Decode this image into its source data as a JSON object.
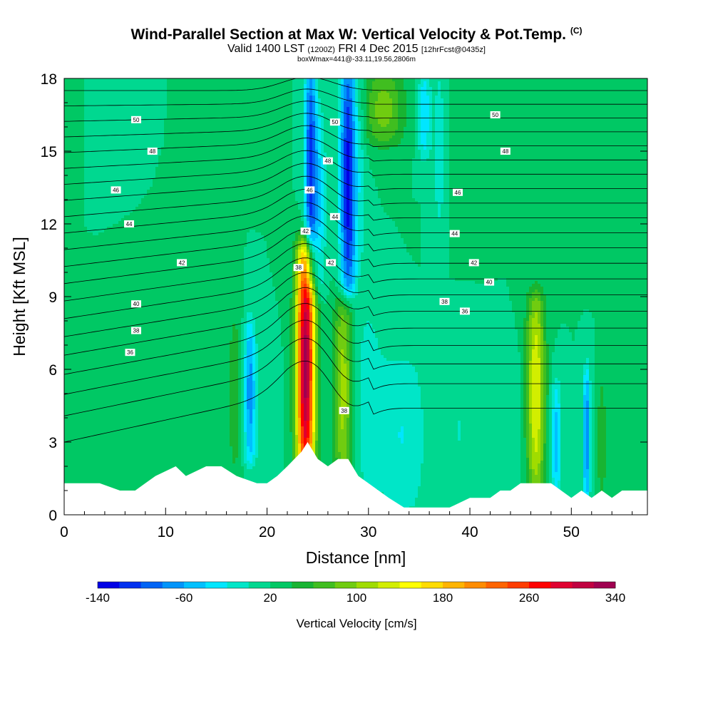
{
  "title": {
    "main": "Wind-Parallel Section at Max W: Vertical Velocity & Pot.Temp.",
    "copyright": "(C)",
    "valid_prefix": "Valid 1400 LST",
    "utc": "(1200Z)",
    "date": "FRI 4 Dec 2015",
    "forecast": "[12hrFcst@0435z]",
    "subtitle": "boxWmax=441@-33.11,19.56,2806m"
  },
  "chart_data": {
    "type": "heatmap",
    "title": "Wind-Parallel Section at Max W: Vertical Velocity & Pot.Temp.",
    "xlabel": "Distance [nm]",
    "ylabel": "Height [Kft MSL]",
    "xlim": [
      0,
      57.5
    ],
    "ylim": [
      0,
      18
    ],
    "x_ticks": [
      "0",
      "10",
      "20",
      "30",
      "40",
      "50"
    ],
    "y_ticks": [
      "0",
      "3",
      "6",
      "9",
      "12",
      "15",
      "18"
    ],
    "colorbar": {
      "label": "Vertical Velocity [cm/s]",
      "tick_labels": [
        "-140",
        "-60",
        "20",
        "100",
        "180",
        "260",
        "340"
      ],
      "min": -140,
      "max": 340,
      "step": 20,
      "colors": [
        "#0000e6",
        "#0030f0",
        "#0064f5",
        "#0094fa",
        "#00c0ff",
        "#00e6ff",
        "#00e6c8",
        "#00d890",
        "#00c864",
        "#18b432",
        "#40be20",
        "#70cc10",
        "#a0dc00",
        "#d2ee00",
        "#ffff00",
        "#ffdc00",
        "#ffb400",
        "#ff8c00",
        "#ff6400",
        "#ff3c00",
        "#ff0000",
        "#e00030",
        "#c00040",
        "#a00050"
      ]
    },
    "background_value": 20,
    "velocity_features": [
      {
        "x": 23.8,
        "ylo": 1.8,
        "yhi": 10.5,
        "w": 0.9,
        "value": 330
      },
      {
        "x": 24.3,
        "ylo": 10.0,
        "yhi": 18.0,
        "w": 0.6,
        "value": -110
      },
      {
        "x": 25.2,
        "ylo": 9.5,
        "yhi": 16.0,
        "w": 0.6,
        "value": -30
      },
      {
        "x": 27.5,
        "ylo": 1.8,
        "yhi": 8.5,
        "w": 0.9,
        "value": 110
      },
      {
        "x": 28.0,
        "ylo": 9.5,
        "yhi": 18.0,
        "w": 0.8,
        "value": -130
      },
      {
        "x": 29.3,
        "ylo": 10.5,
        "yhi": 18.0,
        "w": 0.6,
        "value": 0
      },
      {
        "x": 30.0,
        "ylo": 1.5,
        "yhi": 8.0,
        "w": 1.5,
        "value": -10
      },
      {
        "x": 31.5,
        "ylo": 15.5,
        "yhi": 18.0,
        "w": 2.0,
        "value": 90
      },
      {
        "x": 33.3,
        "ylo": 0.5,
        "yhi": 6.0,
        "w": 2.5,
        "value": -20
      },
      {
        "x": 35.5,
        "ylo": 15.0,
        "yhi": 18.0,
        "w": 0.6,
        "value": -40
      },
      {
        "x": 37.0,
        "ylo": 12.0,
        "yhi": 18.0,
        "w": 0.7,
        "value": -10
      },
      {
        "x": 18.3,
        "ylo": 2.5,
        "yhi": 7.5,
        "w": 0.6,
        "value": -70
      },
      {
        "x": 16.8,
        "ylo": 2.0,
        "yhi": 8.0,
        "w": 0.8,
        "value": 50
      },
      {
        "x": 20.0,
        "ylo": 1.5,
        "yhi": 6.0,
        "w": 1.0,
        "value": 0
      },
      {
        "x": 46.5,
        "ylo": 1.5,
        "yhi": 8.5,
        "w": 0.9,
        "value": 140
      },
      {
        "x": 48.5,
        "ylo": 1.0,
        "yhi": 5.0,
        "w": 0.5,
        "value": -50
      },
      {
        "x": 51.5,
        "ylo": 1.0,
        "yhi": 5.5,
        "w": 0.35,
        "value": -80
      },
      {
        "x": 53.0,
        "ylo": 1.0,
        "yhi": 5.0,
        "w": 0.4,
        "value": 60
      },
      {
        "x": 3.5,
        "ylo": 1.5,
        "yhi": 6.0,
        "w": 2.5,
        "value": 30
      },
      {
        "x": 10.0,
        "ylo": 6.0,
        "yhi": 14.0,
        "w": 1.5,
        "value": 30
      },
      {
        "x": 14.0,
        "ylo": 14.0,
        "yhi": 18.0,
        "w": 3.0,
        "value": 30
      },
      {
        "x": 8.0,
        "ylo": 14.0,
        "yhi": 18.0,
        "w": 1.5,
        "value": 10
      },
      {
        "x": 40.0,
        "ylo": 12.0,
        "yhi": 18.0,
        "w": 2.0,
        "value": 30
      },
      {
        "x": 52.0,
        "ylo": 10.0,
        "yhi": 18.0,
        "w": 2.0,
        "value": 30
      },
      {
        "x": 44.0,
        "ylo": 1.0,
        "yhi": 6.0,
        "w": 1.2,
        "value": 0
      },
      {
        "x": 39.0,
        "ylo": 1.0,
        "yhi": 6.0,
        "w": 1.5,
        "value": 0
      }
    ],
    "terrain": {
      "x": [
        0,
        1.5,
        3.5,
        5.5,
        7.0,
        8.0,
        9.0,
        11.0,
        12.0,
        14.0,
        15.5,
        17.0,
        19.0,
        20.0,
        21.0,
        22.0,
        22.7,
        23.4,
        24.0,
        25.0,
        26.0,
        27.0,
        28.0,
        29.0,
        30.0,
        31.0,
        32.0,
        33.5,
        34.5,
        36.0,
        38.0,
        40.0,
        42.0,
        43.0,
        44.0,
        45.0,
        46.0,
        48.0,
        49.0,
        50.0,
        51.0,
        52.0,
        53.0,
        54.0,
        55.0,
        56.0,
        57.5
      ],
      "top": [
        1.3,
        1.3,
        1.3,
        1.0,
        1.0,
        1.3,
        1.6,
        2.0,
        1.6,
        2.0,
        2.0,
        1.6,
        1.3,
        1.3,
        1.6,
        2.0,
        2.3,
        2.6,
        3.0,
        2.3,
        2.0,
        2.3,
        2.3,
        1.6,
        1.3,
        1.0,
        0.7,
        0.3,
        0.3,
        0.3,
        0.3,
        0.7,
        0.7,
        1.0,
        1.0,
        1.3,
        1.3,
        1.3,
        1.0,
        0.7,
        1.0,
        0.7,
        1.0,
        0.7,
        1.0,
        1.0,
        1.0
      ]
    },
    "theta_contours": {
      "levels": [
        30,
        31,
        32,
        33,
        34,
        35,
        36,
        37,
        38,
        39,
        40,
        41,
        42,
        43,
        44,
        45,
        46,
        47,
        48,
        49,
        50
      ],
      "labeled": [
        {
          "value": "36",
          "x": 6.5,
          "y": 6.7
        },
        {
          "value": "38",
          "x": 7.1,
          "y": 7.6
        },
        {
          "value": "40",
          "x": 7.1,
          "y": 8.7
        },
        {
          "value": "42",
          "x": 11.6,
          "y": 10.4
        },
        {
          "value": "44",
          "x": 6.4,
          "y": 12.0
        },
        {
          "value": "46",
          "x": 5.1,
          "y": 13.4
        },
        {
          "value": "48",
          "x": 8.7,
          "y": 15.0
        },
        {
          "value": "50",
          "x": 7.1,
          "y": 16.3
        },
        {
          "value": "38",
          "x": 23.1,
          "y": 10.2
        },
        {
          "value": "42",
          "x": 23.8,
          "y": 11.7
        },
        {
          "value": "46",
          "x": 24.2,
          "y": 13.4
        },
        {
          "value": "48",
          "x": 26.0,
          "y": 14.6
        },
        {
          "value": "50",
          "x": 26.7,
          "y": 16.2
        },
        {
          "value": "44",
          "x": 26.7,
          "y": 12.3
        },
        {
          "value": "42",
          "x": 26.3,
          "y": 10.4
        },
        {
          "value": "38",
          "x": 27.6,
          "y": 4.3
        },
        {
          "value": "38",
          "x": 37.5,
          "y": 8.8
        },
        {
          "value": "36",
          "x": 39.5,
          "y": 8.4
        },
        {
          "value": "40",
          "x": 41.9,
          "y": 9.6
        },
        {
          "value": "42",
          "x": 40.4,
          "y": 10.4
        },
        {
          "value": "44",
          "x": 38.5,
          "y": 11.6
        },
        {
          "value": "46",
          "x": 38.8,
          "y": 13.3
        },
        {
          "value": "48",
          "x": 43.5,
          "y": 15.0
        },
        {
          "value": "50",
          "x": 42.5,
          "y": 16.5
        }
      ]
    }
  }
}
